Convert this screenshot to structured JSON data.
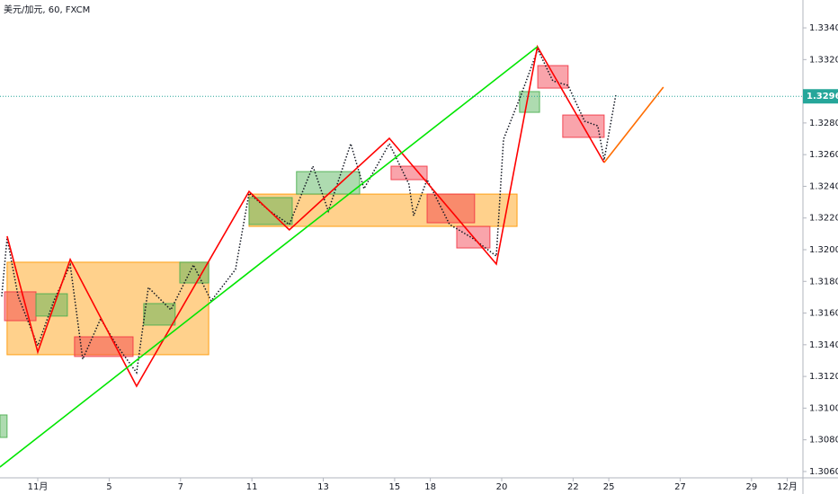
{
  "chart_data": {
    "type": "line",
    "title": "美元/加元, 60, FXCM",
    "xlim": [
      -1.058,
      21.44
    ],
    "ylim": [
      1.3056,
      1.33576
    ],
    "xticks": [
      {
        "value": 0,
        "label": "11月"
      },
      {
        "value": 2,
        "label": "5"
      },
      {
        "value": 4,
        "label": "7"
      },
      {
        "value": 6,
        "label": "11"
      },
      {
        "value": 8,
        "label": "13"
      },
      {
        "value": 10,
        "label": "15"
      },
      {
        "value": 11,
        "label": "18"
      },
      {
        "value": 13,
        "label": "20"
      },
      {
        "value": 15,
        "label": "22"
      },
      {
        "value": 16,
        "label": "25"
      },
      {
        "value": 18,
        "label": "27"
      },
      {
        "value": 20,
        "label": "29"
      },
      {
        "value": 21,
        "label": "12月"
      }
    ],
    "yticks": [
      {
        "value": 1.306,
        "label": "1.30600"
      },
      {
        "value": 1.308,
        "label": "1.30800"
      },
      {
        "value": 1.31,
        "label": "1.31000"
      },
      {
        "value": 1.312,
        "label": "1.31200"
      },
      {
        "value": 1.314,
        "label": "1.31400"
      },
      {
        "value": 1.316,
        "label": "1.31600"
      },
      {
        "value": 1.318,
        "label": "1.31800"
      },
      {
        "value": 1.32,
        "label": "1.32000"
      },
      {
        "value": 1.322,
        "label": "1.32200"
      },
      {
        "value": 1.324,
        "label": "1.32400"
      },
      {
        "value": 1.326,
        "label": "1.32600"
      },
      {
        "value": 1.328,
        "label": "1.32800"
      },
      {
        "value": 1.332,
        "label": "1.33200"
      },
      {
        "value": 1.334,
        "label": "1.33400"
      }
    ],
    "last_price": 1.32968,
    "last_price_color": "#26a69a",
    "zones": [
      {
        "color": "#ff9800",
        "x": [
          -0.86,
          4.79
        ],
        "y": [
          1.31337,
          1.31921
        ]
      },
      {
        "color": "#ff9800",
        "x": [
          5.92,
          13.43
        ],
        "y": [
          1.32147,
          1.32351
        ]
      },
      {
        "color": "#4caf50",
        "x": [
          -1.06,
          -0.86
        ],
        "y": [
          1.30815,
          1.30957
        ]
      },
      {
        "color": "#f23645",
        "x": [
          -0.93,
          -0.05
        ],
        "y": [
          1.31552,
          1.31734
        ]
      },
      {
        "color": "#4caf50",
        "x": [
          -0.05,
          0.83
        ],
        "y": [
          1.31581,
          1.31722
        ]
      },
      {
        "color": "#f23645",
        "x": [
          1.03,
          2.67
        ],
        "y": [
          1.31326,
          1.3145
        ]
      },
      {
        "color": "#4caf50",
        "x": [
          2.97,
          3.85
        ],
        "y": [
          1.31524,
          1.3166
        ]
      },
      {
        "color": "#4caf50",
        "x": [
          3.98,
          4.79
        ],
        "y": [
          1.3179,
          1.31921
        ]
      },
      {
        "color": "#4caf50",
        "x": [
          5.92,
          7.13
        ],
        "y": [
          1.32159,
          1.32329
        ]
      },
      {
        "color": "#4caf50",
        "x": [
          7.25,
          9.02
        ],
        "y": [
          1.32351,
          1.32493
        ]
      },
      {
        "color": "#f23645",
        "x": [
          9.9,
          10.91
        ],
        "y": [
          1.32442,
          1.32527
        ]
      },
      {
        "color": "#f23645",
        "x": [
          10.91,
          12.24
        ],
        "y": [
          1.3217,
          1.32351
        ]
      },
      {
        "color": "#f23645",
        "x": [
          11.74,
          12.67
        ],
        "y": [
          1.32011,
          1.32147
        ]
      },
      {
        "color": "#4caf50",
        "x": [
          13.5,
          14.06
        ],
        "y": [
          1.32867,
          1.32998
        ]
      },
      {
        "color": "#f23645",
        "x": [
          14.01,
          14.86
        ],
        "y": [
          1.3302,
          1.33162
        ]
      },
      {
        "color": "#f23645",
        "x": [
          14.71,
          15.87
        ],
        "y": [
          1.32709,
          1.3285
        ]
      }
    ],
    "series": [
      {
        "color": "#131722",
        "style": "dotted",
        "x": [
          -1.01,
          -0.86,
          -0.55,
          0,
          0.45,
          0.91,
          1.26,
          1.76,
          2.22,
          2.77,
          3.1,
          3.73,
          4.36,
          4.86,
          5.54,
          5.92,
          6.5,
          7.05,
          7.71,
          8.14,
          8.77,
          9.14,
          9.85,
          10.4,
          10.53,
          10.91,
          11.54,
          12.17,
          12.85,
          13.05,
          13.55,
          14.01,
          14.43,
          14.86,
          15.32,
          15.69,
          15.87,
          16.2
        ],
        "y": [
          1.31705,
          1.32074,
          1.31705,
          1.31394,
          1.31677,
          1.31904,
          1.31309,
          1.31564,
          1.31394,
          1.31224,
          1.31762,
          1.3162,
          1.31904,
          1.31677,
          1.31875,
          1.32357,
          1.32244,
          1.32159,
          1.32527,
          1.32244,
          1.32669,
          1.32385,
          1.32669,
          1.32414,
          1.32215,
          1.32442,
          1.32159,
          1.32074,
          1.3196,
          1.32697,
          1.32981,
          1.33264,
          1.33066,
          1.33037,
          1.32811,
          1.32782,
          1.32567,
          1.32981
        ]
      },
      {
        "color": "#ff0000",
        "style": "solid",
        "x": [
          -0.86,
          0,
          0.91,
          2.77,
          5.92,
          7.05,
          9.85,
          12.85,
          14.0,
          15.87
        ],
        "y": [
          1.32085,
          1.31354,
          1.31938,
          1.31138,
          1.32368,
          1.32125,
          1.32703,
          1.31909,
          1.33281,
          1.3255
        ]
      },
      {
        "color": "#00e600",
        "style": "solid",
        "x": [
          -1.06,
          14.0
        ],
        "y": [
          1.30628,
          1.33281
        ]
      },
      {
        "color": "#ff6d00",
        "style": "solid",
        "x": [
          15.87,
          17.53
        ],
        "y": [
          1.3255,
          1.33026
        ]
      }
    ]
  }
}
